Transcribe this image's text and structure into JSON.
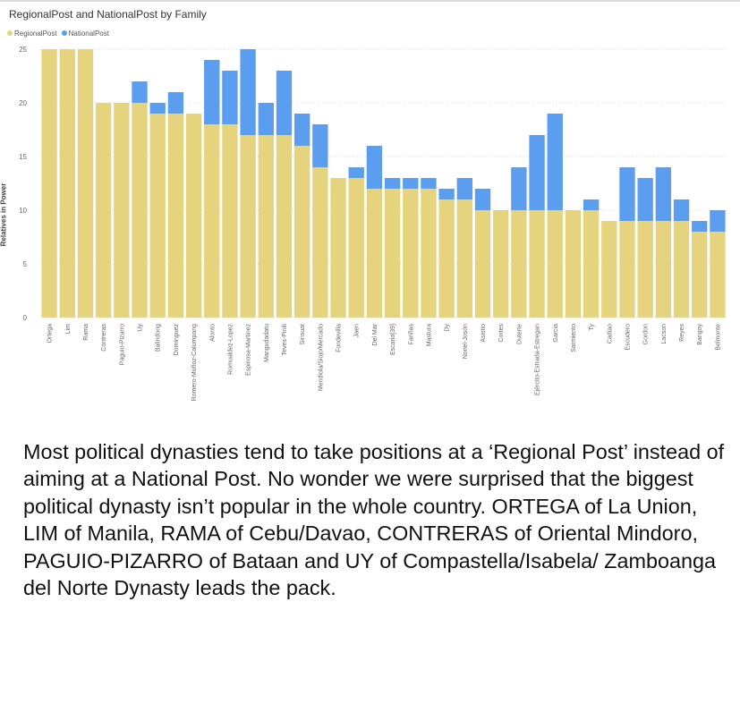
{
  "caption": "Most political dynasties tend to take positions at a ‘Regional Post’ instead of aiming at a National Post.  No wonder we were surprised that the biggest political dynasty isn’t popular in the whole country. ORTEGA of La Union, LIM of Manila, RAMA of Cebu/Davao, CONTRERAS of Oriental Mindoro, PAGUIO-PIZARRO of Bataan and UY of Compastella/Isabela/ Zamboanga del Norte Dynasty leads the pack.",
  "colors": {
    "regional": "#e6d37e",
    "national": "#5b9ef0",
    "grid": "#d8d8d8",
    "tick": "#666666"
  },
  "chart_data": {
    "type": "bar",
    "stacked": true,
    "title": "RegionalPost and NationalPost by Family",
    "ylabel": "Relatives in Power",
    "xlabel": "",
    "ylim": [
      0,
      25
    ],
    "yticks": [
      0,
      5,
      10,
      15,
      20,
      25
    ],
    "grid": true,
    "legend_position": "top-left",
    "categories": [
      "Ortega",
      "Lim",
      "Rama",
      "Contreras",
      "Paguio-Pizarro",
      "Uy",
      "Balindong",
      "Dominguez",
      "Romero-Muñoz-Calumpang",
      "Alonto",
      "Romualdez-Lopez",
      "Espinosa-Martinez",
      "Mangudadatu",
      "Teves-Pinili",
      "Sinsuat",
      "Mendiola/Siojo/Mercado",
      "Fondevilla",
      "Jaen",
      "Del Mar",
      "Escario[39]",
      "Fariñas",
      "Mastura",
      "Dy",
      "Noriel-Josón",
      "Asistio",
      "Cortes",
      "Duterte",
      "Ejército-Estrada-Estregan",
      "Garcia",
      "Sarmiento",
      "Ty",
      "Cadiao",
      "Escudero",
      "Gordon",
      "Lacson",
      "Reyes",
      "Bangoy",
      "Belmonte"
    ],
    "series": [
      {
        "name": "RegionalPost",
        "values": [
          25,
          25,
          25,
          20,
          20,
          20,
          19,
          19,
          19,
          18,
          18,
          17,
          17,
          17,
          16,
          14,
          13,
          13,
          12,
          12,
          12,
          12,
          11,
          11,
          10,
          10,
          10,
          10,
          10,
          10,
          10,
          9,
          9,
          9,
          9,
          9,
          8,
          8
        ]
      },
      {
        "name": "NationalPost",
        "values": [
          0,
          0,
          0,
          0,
          0,
          2,
          1,
          2,
          0,
          6,
          5,
          8,
          3,
          6,
          3,
          4,
          0,
          1,
          4,
          1,
          1,
          1,
          1,
          2,
          2,
          0,
          4,
          7,
          9,
          0,
          1,
          0,
          5,
          4,
          5,
          2,
          1,
          2
        ]
      }
    ]
  }
}
